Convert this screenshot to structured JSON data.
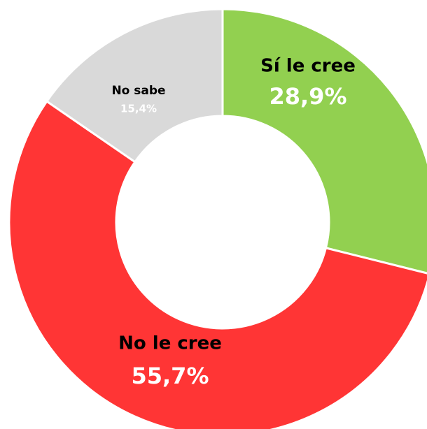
{
  "chart_data": {
    "type": "donut",
    "categories": [
      "Sí le cree",
      "No le cree",
      "No sabe"
    ],
    "values": [
      28.9,
      55.7,
      15.4
    ],
    "value_labels": [
      "28,9%",
      "55,7%",
      "15,4%"
    ],
    "colors": [
      "#92d050",
      "#ff3535",
      "#d9d9d9"
    ]
  }
}
